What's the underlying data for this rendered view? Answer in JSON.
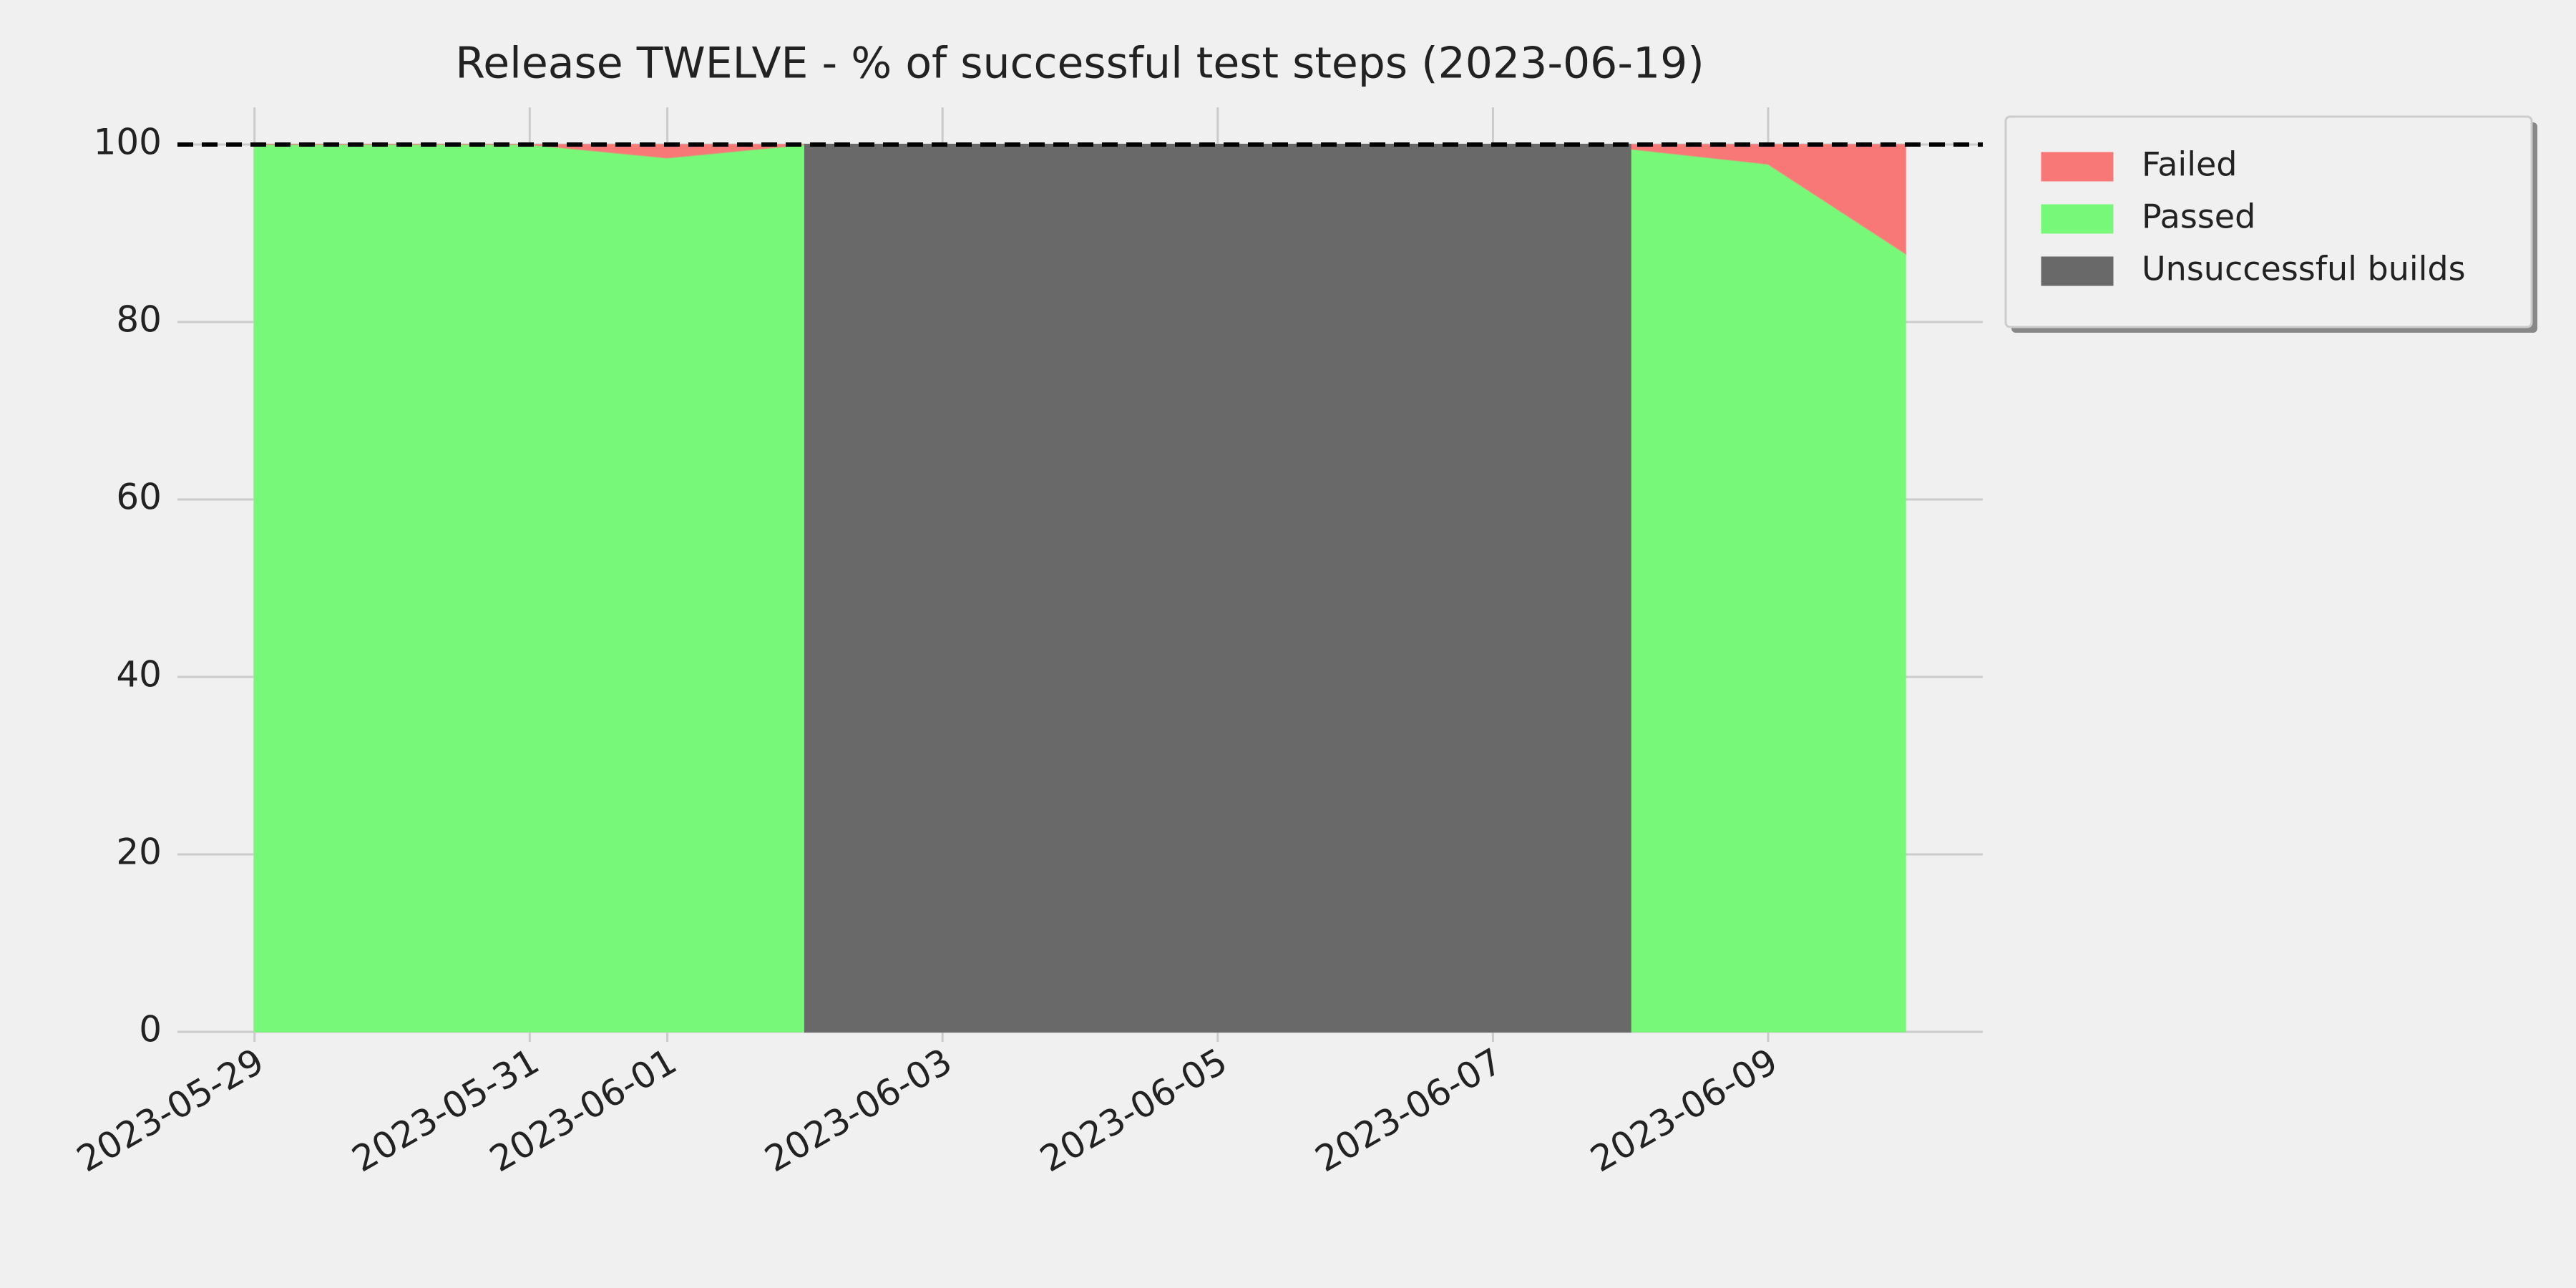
{
  "chart_data": {
    "type": "area",
    "title": "Release TWELVE - % of successful test steps (2023-06-19)",
    "x": [
      "2023-05-29",
      "2023-05-30",
      "2023-05-31",
      "2023-06-01",
      "2023-06-02",
      "2023-06-03",
      "2023-06-04",
      "2023-06-05",
      "2023-06-06",
      "2023-06-07",
      "2023-06-08",
      "2023-06-09",
      "2023-06-10"
    ],
    "series": [
      {
        "name": "Failed",
        "color": "#f87878",
        "stacked": true,
        "values": [
          0,
          0,
          0,
          1.5,
          0,
          null,
          null,
          null,
          null,
          null,
          0.5,
          2.2,
          12.3
        ]
      },
      {
        "name": "Passed",
        "color": "#78f878",
        "stacked": true,
        "values": [
          100,
          100,
          100,
          98.5,
          100,
          null,
          null,
          null,
          null,
          null,
          99.5,
          97.8,
          87.7
        ]
      },
      {
        "name": "Unsuccessful builds",
        "color": "#696969",
        "stacked": false,
        "values": [
          null,
          null,
          null,
          null,
          100,
          100,
          100,
          100,
          100,
          100,
          100,
          null,
          null
        ]
      }
    ],
    "xticks": [
      "2023-05-29",
      "2023-05-31",
      "2023-06-01",
      "2023-06-03",
      "2023-06-05",
      "2023-06-07",
      "2023-06-09"
    ],
    "ylim": [
      0,
      100
    ],
    "yticks": [
      0,
      20,
      40,
      60,
      80,
      100
    ],
    "reference_line": 100,
    "grid": true,
    "legend": "upper right outside"
  }
}
